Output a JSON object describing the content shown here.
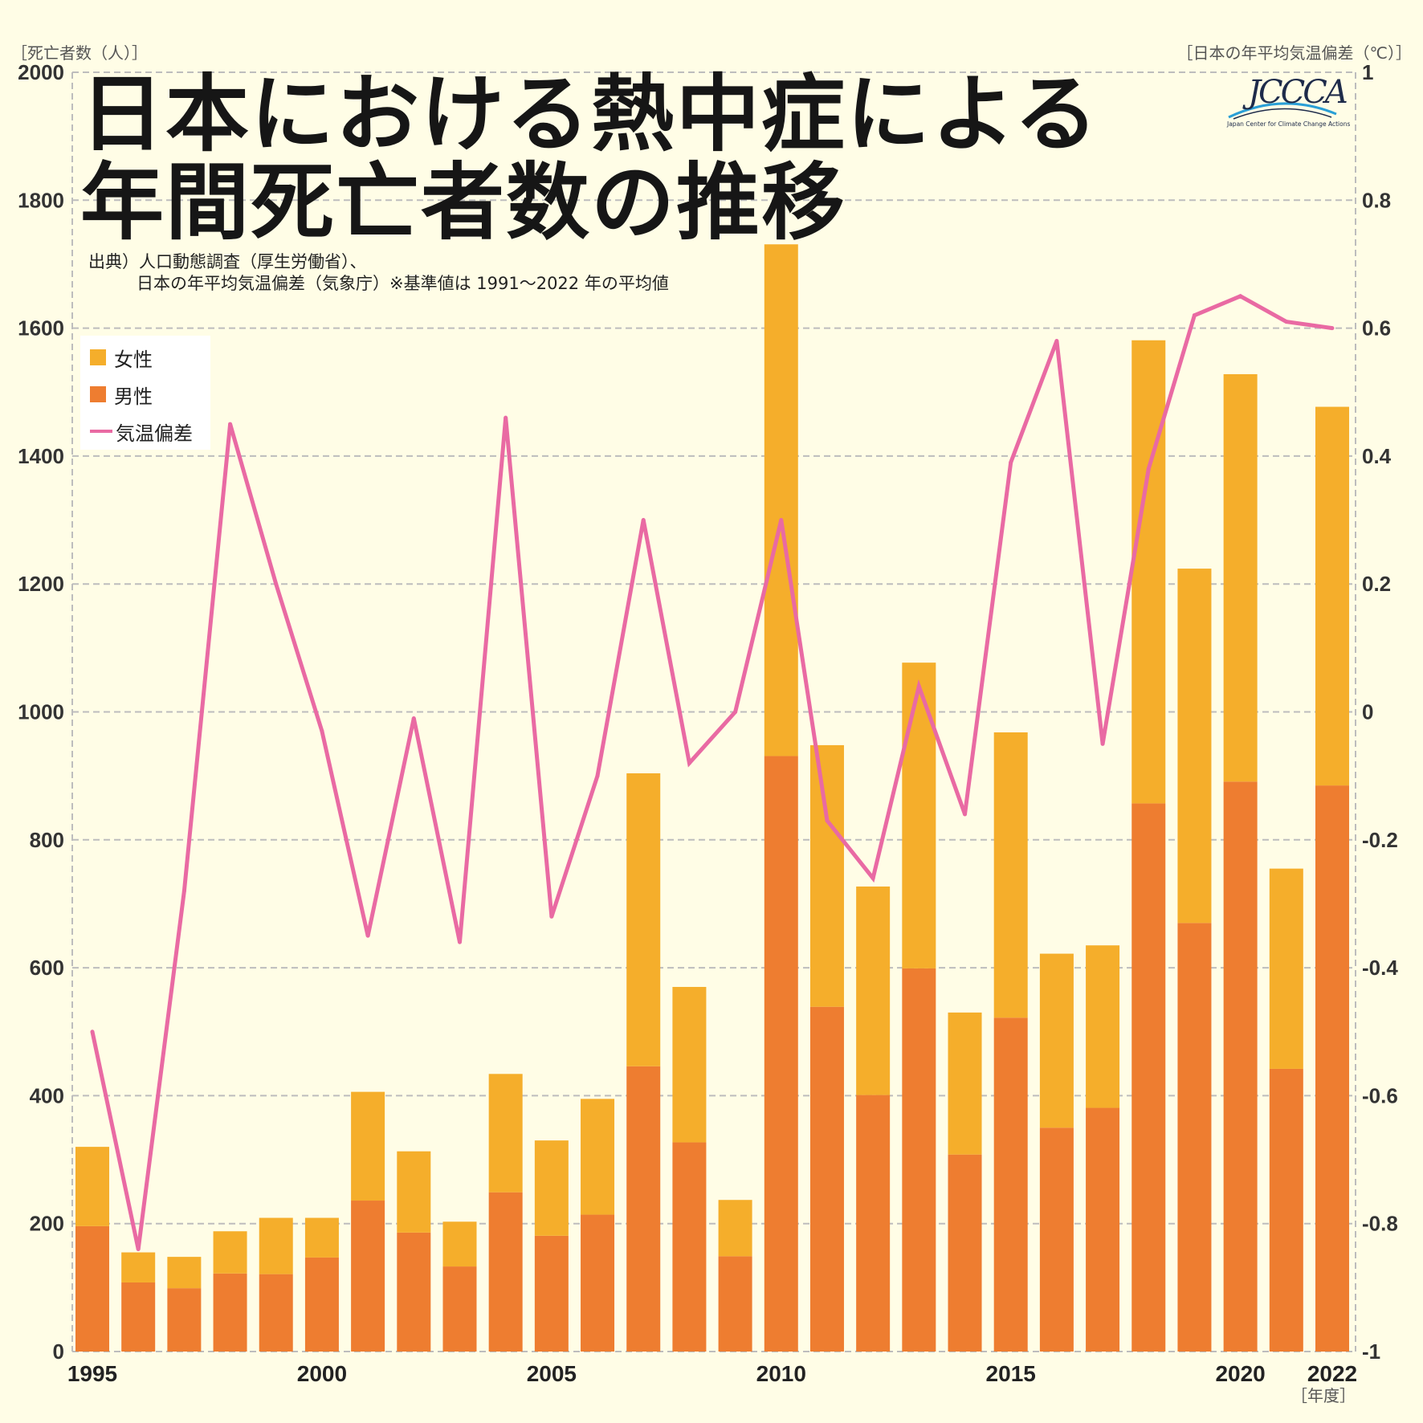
{
  "title_line1": "日本における熱中症による",
  "title_line2": "年間死亡者数の推移",
  "source_line1": "出典）人口動態調査（厚生労働省）、",
  "source_line2": "日本の年平均気温偏差（気象庁）※基準値は 1991～2022 年の平均値",
  "logo": {
    "text": "JCCCA",
    "subtitle": "Japan Center for Climate Change Actions"
  },
  "colors": {
    "female": "#f5ae2b",
    "male": "#ee7d30",
    "temp": "#e96aa3",
    "background": "#fffde6",
    "grid": "#bdbdbd"
  },
  "chart_data": {
    "type": "bar",
    "stacked": true,
    "x": [
      1995,
      1996,
      1997,
      1998,
      1999,
      2000,
      2001,
      2002,
      2003,
      2004,
      2005,
      2006,
      2007,
      2008,
      2009,
      2010,
      2011,
      2012,
      2013,
      2014,
      2015,
      2016,
      2017,
      2018,
      2019,
      2020,
      2021,
      2022
    ],
    "x_tick_labels": [
      "1995",
      "2000",
      "2005",
      "2010",
      "2015",
      "2020",
      "2022"
    ],
    "series": [
      {
        "name": "男性",
        "axis": "left",
        "values": [
          196,
          108,
          99,
          122,
          121,
          147,
          236,
          186,
          133,
          249,
          181,
          214,
          446,
          327,
          149,
          931,
          539,
          401,
          599,
          308,
          522,
          350,
          381,
          857,
          670,
          891,
          442,
          885
        ]
      },
      {
        "name": "女性",
        "axis": "left",
        "values": [
          124,
          47,
          49,
          66,
          88,
          62,
          170,
          127,
          70,
          185,
          149,
          181,
          458,
          243,
          88,
          800,
          409,
          326,
          478,
          222,
          446,
          272,
          254,
          724,
          554,
          637,
          313,
          592
        ]
      },
      {
        "name": "気温偏差",
        "type": "line",
        "axis": "right",
        "values": [
          -0.5,
          -0.84,
          -0.28,
          0.45,
          0.2,
          -0.03,
          -0.35,
          -0.01,
          -0.36,
          0.46,
          -0.32,
          -0.1,
          0.3,
          -0.08,
          0.0,
          0.3,
          -0.17,
          -0.26,
          0.04,
          -0.16,
          0.39,
          0.58,
          -0.05,
          0.38,
          0.62,
          0.65,
          0.61,
          0.6
        ]
      }
    ],
    "ylabel": "［死亡者数（人）］",
    "y2label": "［日本の年平均気温偏差（℃）］",
    "xlabel": "［年度］",
    "ylim": [
      0,
      2000
    ],
    "y_ticks": [
      0,
      200,
      400,
      600,
      800,
      1000,
      1200,
      1400,
      1600,
      1800,
      2000
    ],
    "y2lim": [
      -1,
      1
    ],
    "y2_ticks": [
      -1,
      -0.8,
      -0.6,
      -0.4,
      -0.2,
      0,
      0.2,
      0.4,
      0.6,
      0.8,
      1
    ],
    "y2_tick_labels": [
      "-1",
      "-0.8",
      "-0.6",
      "-0.4",
      "-0.2",
      "0",
      "0.2",
      "0.4",
      "0.6",
      "0.8",
      "1"
    ],
    "grid": true,
    "legend": {
      "position": "top-left",
      "entries": [
        "女性",
        "男性",
        "気温偏差"
      ]
    }
  }
}
